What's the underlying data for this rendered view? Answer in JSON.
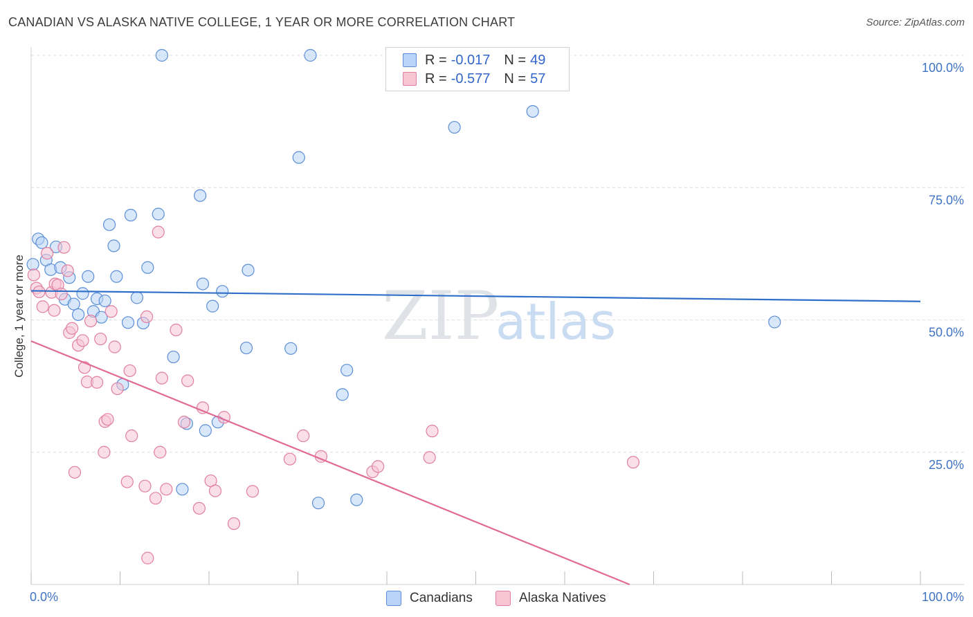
{
  "title": "CANADIAN VS ALASKA NATIVE COLLEGE, 1 YEAR OR MORE CORRELATION CHART",
  "source": "Source: ZipAtlas.com",
  "watermark": {
    "zip": "ZIP",
    "atlas": "atlas"
  },
  "legend_top": [
    {
      "r_label": "R =",
      "r_value": "-0.017",
      "n_label": "N =",
      "n_value": "49",
      "fill": "#b8d3f5",
      "stroke": "#5b8ed6"
    },
    {
      "r_label": "R =",
      "r_value": "-0.577",
      "n_label": "N =",
      "n_value": "57",
      "fill": "#f8c5d5",
      "stroke": "#e07fa0"
    }
  ],
  "legend_bottom": [
    {
      "label": "Canadians",
      "fill": "#b8d3f5",
      "stroke": "#5b8ed6"
    },
    {
      "label": "Alaska Natives",
      "fill": "#f8c5d5",
      "stroke": "#e07fa0"
    }
  ],
  "chart_data": {
    "type": "scatter",
    "title": "CANADIAN VS ALASKA NATIVE COLLEGE, 1 YEAR OR MORE CORRELATION CHART",
    "xlabel": "",
    "ylabel": "College, 1 year or more",
    "xlim": [
      0,
      100
    ],
    "ylim": [
      0,
      100
    ],
    "x_tick_labels": [
      {
        "value": 0,
        "label": "0.0%"
      },
      {
        "value": 100,
        "label": "100.0%"
      }
    ],
    "y_tick_labels": [
      {
        "value": 25,
        "label": "25.0%"
      },
      {
        "value": 50,
        "label": "50.0%"
      },
      {
        "value": 75,
        "label": "75.0%"
      },
      {
        "value": 100,
        "label": "100.0%"
      }
    ],
    "grid": true,
    "series": [
      {
        "name": "Canadians",
        "color": "#5b8ed6",
        "fill": "#b8d3f5",
        "trend": {
          "x": [
            0,
            100
          ],
          "y": [
            55.5,
            53.5
          ],
          "color": "#2f6fc9"
        },
        "points": [
          [
            0.2,
            60.5
          ],
          [
            0.8,
            65.3
          ],
          [
            1.2,
            64.6
          ],
          [
            1.7,
            61.3
          ],
          [
            2.2,
            59.5
          ],
          [
            2.8,
            63.8
          ],
          [
            3.3,
            59.9
          ],
          [
            3.8,
            53.9
          ],
          [
            4.3,
            58.0
          ],
          [
            4.8,
            53.0
          ],
          [
            5.3,
            51.0
          ],
          [
            5.8,
            55.0
          ],
          [
            6.4,
            58.2
          ],
          [
            7.0,
            51.6
          ],
          [
            7.4,
            54.0
          ],
          [
            7.9,
            50.5
          ],
          [
            8.3,
            53.6
          ],
          [
            8.8,
            68.0
          ],
          [
            9.3,
            64.0
          ],
          [
            9.6,
            58.2
          ],
          [
            10.3,
            37.8
          ],
          [
            10.9,
            49.5
          ],
          [
            11.2,
            69.8
          ],
          [
            11.9,
            54.2
          ],
          [
            12.6,
            49.4
          ],
          [
            13.1,
            59.9
          ],
          [
            14.3,
            70.0
          ],
          [
            14.7,
            100.0
          ],
          [
            16.0,
            43.0
          ],
          [
            17.0,
            18.0
          ],
          [
            17.5,
            30.4
          ],
          [
            19.0,
            73.5
          ],
          [
            19.3,
            56.8
          ],
          [
            19.6,
            29.1
          ],
          [
            20.4,
            52.6
          ],
          [
            21.0,
            30.7
          ],
          [
            21.5,
            55.4
          ],
          [
            24.2,
            44.7
          ],
          [
            24.4,
            59.4
          ],
          [
            29.2,
            44.6
          ],
          [
            30.1,
            80.7
          ],
          [
            31.4,
            100.0
          ],
          [
            32.3,
            15.4
          ],
          [
            35.0,
            35.9
          ],
          [
            35.5,
            40.5
          ],
          [
            36.6,
            16.0
          ],
          [
            47.6,
            86.4
          ],
          [
            56.4,
            89.4
          ],
          [
            83.6,
            49.6
          ]
        ]
      },
      {
        "name": "Alaska Natives",
        "color": "#e07fa0",
        "fill": "#f8c5d5",
        "trend": {
          "x": [
            0,
            67.3
          ],
          "y": [
            46.0,
            0
          ],
          "color": "#e06a95"
        },
        "points": [
          [
            0.3,
            58.5
          ],
          [
            0.6,
            56.0
          ],
          [
            0.9,
            55.3
          ],
          [
            1.3,
            52.5
          ],
          [
            1.8,
            62.6
          ],
          [
            2.3,
            55.2
          ],
          [
            2.7,
            56.8
          ],
          [
            2.6,
            51.8
          ],
          [
            3.0,
            56.6
          ],
          [
            3.4,
            54.9
          ],
          [
            3.7,
            63.7
          ],
          [
            4.1,
            59.3
          ],
          [
            4.3,
            47.6
          ],
          [
            4.6,
            48.4
          ],
          [
            4.9,
            21.2
          ],
          [
            5.3,
            45.2
          ],
          [
            5.8,
            46.1
          ],
          [
            6.0,
            41.0
          ],
          [
            6.3,
            38.3
          ],
          [
            6.7,
            49.8
          ],
          [
            7.4,
            38.2
          ],
          [
            7.8,
            46.4
          ],
          [
            8.2,
            25.0
          ],
          [
            8.3,
            30.8
          ],
          [
            8.6,
            31.2
          ],
          [
            9.0,
            51.6
          ],
          [
            9.4,
            44.9
          ],
          [
            9.7,
            37.0
          ],
          [
            10.8,
            19.4
          ],
          [
            11.1,
            40.4
          ],
          [
            11.3,
            28.1
          ],
          [
            12.8,
            18.6
          ],
          [
            13.0,
            50.6
          ],
          [
            13.1,
            5.0
          ],
          [
            14.0,
            16.3
          ],
          [
            14.3,
            66.6
          ],
          [
            14.5,
            25.0
          ],
          [
            14.7,
            39.0
          ],
          [
            15.2,
            18.0
          ],
          [
            16.3,
            48.1
          ],
          [
            17.2,
            30.7
          ],
          [
            17.6,
            38.5
          ],
          [
            18.9,
            14.4
          ],
          [
            19.3,
            33.4
          ],
          [
            20.2,
            19.6
          ],
          [
            20.7,
            17.7
          ],
          [
            21.7,
            31.6
          ],
          [
            22.8,
            11.5
          ],
          [
            24.9,
            17.6
          ],
          [
            29.1,
            23.7
          ],
          [
            30.6,
            28.1
          ],
          [
            32.6,
            24.2
          ],
          [
            38.4,
            21.3
          ],
          [
            39.0,
            22.3
          ],
          [
            44.8,
            24.0
          ],
          [
            45.1,
            29.0
          ],
          [
            67.7,
            23.1
          ]
        ]
      }
    ]
  }
}
